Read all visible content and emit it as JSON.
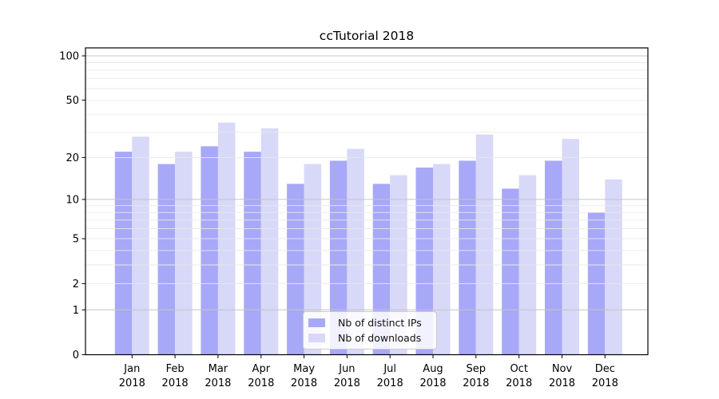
{
  "title": "ccTutorial 2018",
  "chart_data": {
    "type": "bar",
    "title": "ccTutorial 2018",
    "categories": [
      "Jan",
      "Feb",
      "Mar",
      "Apr",
      "May",
      "Jun",
      "Jul",
      "Aug",
      "Sep",
      "Oct",
      "Nov",
      "Dec"
    ],
    "x_year_label": "2018",
    "series": [
      {
        "name": "Nb of distinct IPs",
        "color": "#a8a8f8",
        "values": [
          22,
          18,
          24,
          22,
          13,
          19,
          13,
          17,
          19,
          12,
          19,
          8
        ]
      },
      {
        "name": "Nb of downloads",
        "color": "#d8d8f8",
        "values": [
          28,
          22,
          35,
          32,
          18,
          23,
          15,
          18,
          29,
          15,
          27,
          14
        ]
      }
    ],
    "yscale": "log1p",
    "ylim": [
      0,
      116
    ],
    "yticks": [
      0,
      1,
      2,
      5,
      10,
      20,
      50,
      100
    ],
    "major_gridlines": [
      1,
      10,
      100
    ],
    "minor_gridlines": [
      2,
      3,
      4,
      5,
      6,
      7,
      8,
      9,
      20,
      30,
      40,
      50,
      60,
      70,
      80,
      90
    ],
    "grid": true,
    "legend_position": "lower center",
    "colors": {
      "major_grid": "#c4c4c4",
      "minor_grid": "#e9e9e9",
      "spine": "#000000"
    }
  },
  "legend": {
    "items": [
      {
        "label": "Nb of distinct IPs",
        "color": "#a8a8f8"
      },
      {
        "label": "Nb of downloads",
        "color": "#d8d8f8"
      }
    ]
  }
}
